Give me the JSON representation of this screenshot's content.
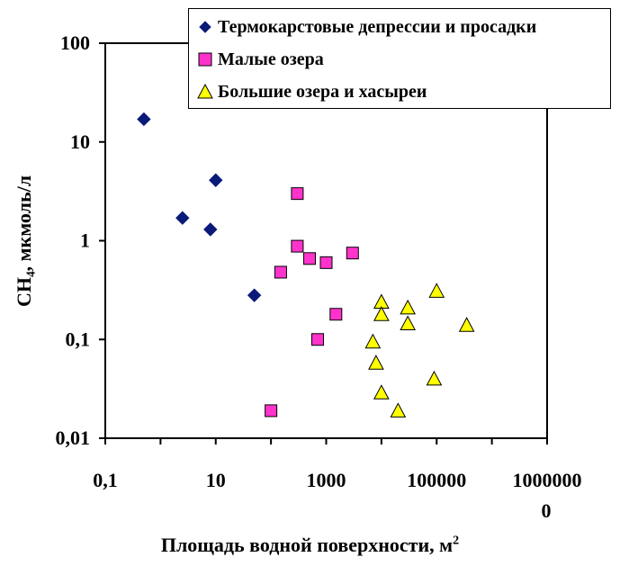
{
  "chart_data": {
    "type": "scatter",
    "title": "",
    "xlabel": "Площадь водной поверхности, м",
    "xlabel_sup": "2",
    "ylabel": "CH₄, мкмоль/л",
    "xscale": "log",
    "yscale": "log",
    "xlim": [
      0.1,
      10000000
    ],
    "ylim": [
      0.01,
      100
    ],
    "grid": false,
    "legend_position": "top-right",
    "x_tick_labels": [
      "0,1",
      "10",
      "1000",
      "100000",
      "1000000"
    ],
    "x_tick_label_wrap": "0",
    "y_tick_labels": [
      "100",
      "10",
      "1",
      "0,1",
      "0,01"
    ],
    "series": [
      {
        "name": "Термокарстовые депрессии и просадки",
        "marker": "diamond",
        "color": "#0a1a78",
        "points": [
          [
            0.5,
            17
          ],
          [
            2.5,
            1.7
          ],
          [
            8,
            1.3
          ],
          [
            10,
            4.1
          ],
          [
            50,
            0.28
          ]
        ]
      },
      {
        "name": "Малые озера",
        "marker": "square",
        "color": "#ff33cc",
        "points": [
          [
            100,
            0.019
          ],
          [
            150,
            0.48
          ],
          [
            300,
            3.0
          ],
          [
            300,
            0.88
          ],
          [
            500,
            0.66
          ],
          [
            700,
            0.1
          ],
          [
            1000,
            0.6
          ],
          [
            1500,
            0.18
          ],
          [
            3000,
            0.75
          ]
        ]
      },
      {
        "name": "Большие озера и хасыреи",
        "marker": "triangle",
        "color": "#ffff00",
        "points": [
          [
            7000,
            0.095
          ],
          [
            8000,
            0.058
          ],
          [
            10000,
            0.24
          ],
          [
            10000,
            0.18
          ],
          [
            10000,
            0.029
          ],
          [
            20000,
            0.019
          ],
          [
            30000,
            0.21
          ],
          [
            30000,
            0.145
          ],
          [
            90000,
            0.04
          ],
          [
            100000,
            0.31
          ],
          [
            350000,
            0.14
          ]
        ]
      }
    ]
  }
}
